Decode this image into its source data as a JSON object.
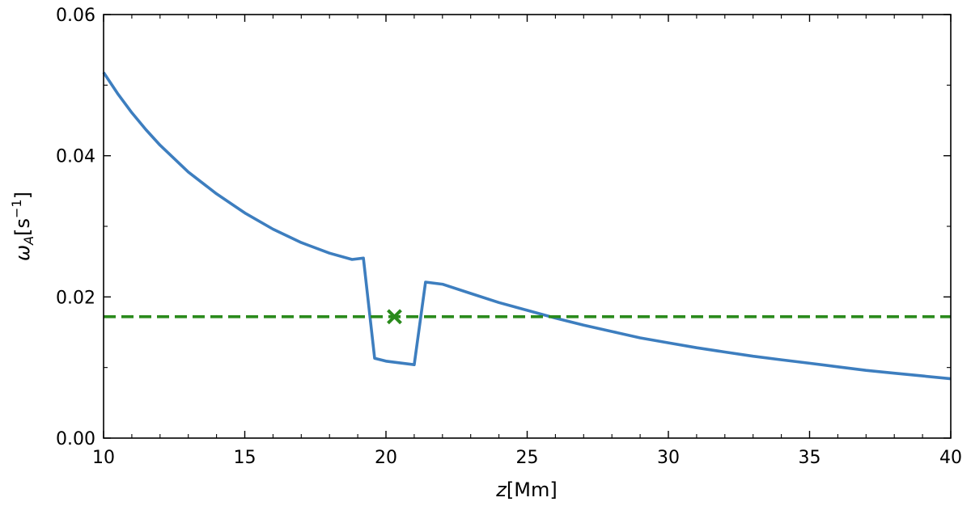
{
  "chart_data": {
    "type": "line",
    "xlabel": {
      "var": "z",
      "unit": "[Mm]"
    },
    "ylabel": {
      "var": "ω",
      "sub": "A",
      "unit_open": "[s",
      "sup": "−1",
      "unit_close": "]"
    },
    "xlim": [
      10,
      40
    ],
    "ylim": [
      0,
      0.06
    ],
    "x_ticks": [
      10,
      15,
      20,
      25,
      30,
      35,
      40
    ],
    "x_tick_labels": [
      "10",
      "15",
      "20",
      "25",
      "30",
      "35",
      "40"
    ],
    "y_ticks": [
      0,
      0.02,
      0.04,
      0.06
    ],
    "y_tick_labels": [
      "0.00",
      "0.02",
      "0.04",
      "0.06"
    ],
    "grid": false,
    "series": [
      {
        "color": "#3d7ebf",
        "style": "solid",
        "x": [
          10.0,
          10.5,
          11.0,
          11.5,
          12.0,
          13.0,
          14.0,
          15.0,
          16.0,
          17.0,
          18.0,
          18.8,
          19.2,
          19.6,
          20.0,
          21.0,
          21.4,
          22.0,
          23.0,
          24.0,
          25.0,
          26.0,
          27.0,
          28.0,
          29.0,
          30.0,
          31.0,
          32.0,
          33.0,
          34.0,
          35.0,
          36.0,
          37.0,
          38.0,
          39.0,
          40.0
        ],
        "y": [
          0.0518,
          0.0488,
          0.0461,
          0.0437,
          0.0415,
          0.0377,
          0.0346,
          0.0319,
          0.0296,
          0.0277,
          0.0262,
          0.0253,
          0.0255,
          0.0113,
          0.0109,
          0.0104,
          0.0221,
          0.0218,
          0.0205,
          0.0192,
          0.0181,
          0.017,
          0.016,
          0.0151,
          0.0142,
          0.0135,
          0.0128,
          0.0122,
          0.0116,
          0.0111,
          0.0106,
          0.0101,
          0.0096,
          0.0092,
          0.0088,
          0.0084
        ]
      },
      {
        "color": "#2a8a1c",
        "style": "dashed",
        "x": [
          10,
          40
        ],
        "y": [
          0.0172,
          0.0172
        ]
      }
    ],
    "markers": [
      {
        "x": 20.3,
        "y": 0.0172,
        "symbol": "x",
        "color": "#2a8a1c"
      }
    ]
  }
}
